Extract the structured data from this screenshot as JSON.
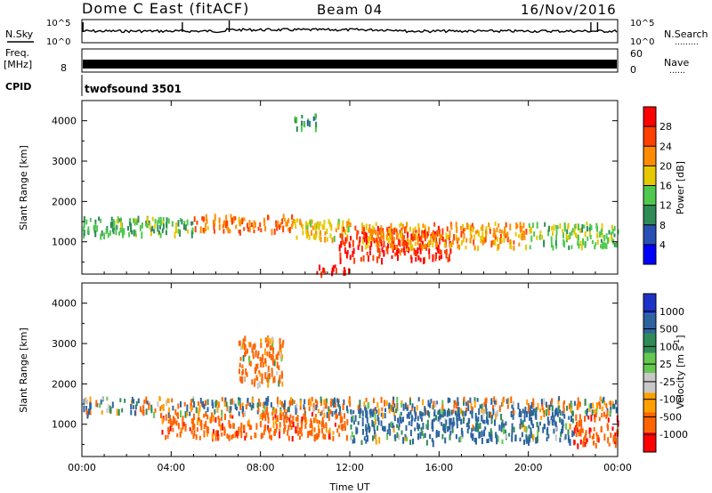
{
  "header": {
    "station": "Dome C East (fitACF)",
    "beam": "Beam 04",
    "date": "16/Nov/2016"
  },
  "sky_panel": {
    "left_label": "N.Sky",
    "right_label": "N.Search",
    "right_label_marker": "………",
    "left_ticks": [
      "10^5",
      "10^0"
    ],
    "right_ticks": [
      "10^5",
      "10^0"
    ]
  },
  "freq_panel": {
    "left_label": "Freq.",
    "left_unit": "[MHz]",
    "left_ticks": [
      "8"
    ],
    "right_label": "Nave",
    "right_label_marker": "……",
    "right_ticks": [
      "60",
      "0"
    ]
  },
  "cpid_panel": {
    "label": "CPID",
    "program": "twofsound 3501"
  },
  "time_axis": {
    "xlabel": "Time UT",
    "ticks": [
      "00:00",
      "04:00",
      "08:00",
      "12:00",
      "16:00",
      "20:00",
      "00:00"
    ]
  },
  "power_panel": {
    "ylabel": "Slant Range [km]",
    "yticks": [
      "4000",
      "3000",
      "2000",
      "1000"
    ],
    "colorbar_label": "Power [dB]",
    "colorbar_ticks": [
      "28",
      "24",
      "20",
      "16",
      "12",
      "8",
      "4"
    ],
    "colors": [
      "#0000ff",
      "#2850b4",
      "#2e8b57",
      "#50c850",
      "#e6c800",
      "#ff8c00",
      "#ff4000",
      "#ff0000"
    ]
  },
  "velocity_panel": {
    "ylabel": "Slant Range [km]",
    "yticks": [
      "4000",
      "3000",
      "2000",
      "1000"
    ],
    "colorbar_label": "Velocity [m s",
    "colorbar_label_exp": "-1",
    "colorbar_label_end": "]",
    "colorbar_ticks": [
      "1000",
      "500",
      "100",
      "25",
      "-25",
      "-100",
      "-500",
      "-1000"
    ],
    "colors": [
      "#1e32c8",
      "#2d64a0",
      "#2e8b57",
      "#64c850",
      "#c8c8c8",
      "#ffa000",
      "#ff6400",
      "#ff0000"
    ]
  },
  "chart_data": [
    {
      "type": "line",
      "panel": "N.Sky / N.Search",
      "x": [
        0,
        4,
        8,
        12,
        16,
        20,
        24
      ],
      "y_scale": "log",
      "ylim": [
        1,
        100000
      ],
      "series": []
    },
    {
      "type": "heatmap",
      "panel": "Power",
      "xlabel": "Time UT",
      "ylabel": "Slant Range [km]",
      "xlim": [
        0,
        24
      ],
      "ylim": [
        200,
        4500
      ],
      "colorbar": {
        "label": "Power [dB]",
        "range": [
          0,
          30
        ]
      },
      "echo_regions": [
        {
          "t_start": 0.0,
          "t_end": 5.0,
          "range_min": 1200,
          "range_max": 1650,
          "value": 12
        },
        {
          "t_start": 5.0,
          "t_end": 9.5,
          "range_min": 1300,
          "range_max": 1700,
          "value": 22
        },
        {
          "t_start": 9.5,
          "t_end": 12.0,
          "range_min": 1100,
          "range_max": 1600,
          "value": 18
        },
        {
          "t_start": 11.5,
          "t_end": 16.5,
          "range_min": 600,
          "range_max": 1400,
          "value": 26
        },
        {
          "t_start": 12.5,
          "t_end": 20.0,
          "range_min": 900,
          "range_max": 1500,
          "value": 20
        },
        {
          "t_start": 20.0,
          "t_end": 24.0,
          "range_min": 900,
          "range_max": 1500,
          "value": 14
        },
        {
          "t_start": 10.5,
          "t_end": 12.0,
          "range_min": 250,
          "range_max": 450,
          "value": 28
        },
        {
          "t_start": 9.5,
          "t_end": 10.5,
          "range_min": 3800,
          "range_max": 4200,
          "value": 10
        }
      ]
    },
    {
      "type": "heatmap",
      "panel": "Velocity",
      "xlabel": "Time UT",
      "ylabel": "Slant Range [km]",
      "xlim": [
        0,
        24
      ],
      "ylim": [
        200,
        4500
      ],
      "colorbar": {
        "label": "Velocity [m s-1]",
        "range": [
          -1000,
          1000
        ]
      },
      "echo_regions": [
        {
          "t_start": 0.0,
          "t_end": 24.0,
          "range_min": 1300,
          "range_max": 1700,
          "value": 0
        },
        {
          "t_start": 3.5,
          "t_end": 12.0,
          "range_min": 700,
          "range_max": 1300,
          "value": -300
        },
        {
          "t_start": 12.0,
          "t_end": 22.0,
          "range_min": 600,
          "range_max": 1400,
          "value": 200
        },
        {
          "t_start": 22.0,
          "t_end": 24.0,
          "range_min": 500,
          "range_max": 1300,
          "value": -400
        },
        {
          "t_start": 7.0,
          "t_end": 9.0,
          "range_min": 2000,
          "range_max": 3200,
          "value": -200
        }
      ]
    }
  ]
}
